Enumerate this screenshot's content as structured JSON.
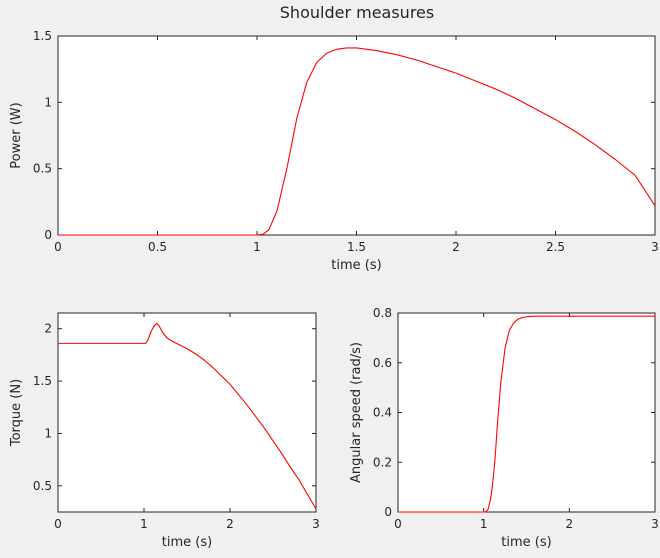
{
  "figure": {
    "title": "Shoulder measures"
  },
  "chart_data": [
    {
      "type": "line",
      "title": "",
      "xlabel": "time (s)",
      "ylabel": "Power (W)",
      "xlim": [
        0,
        3
      ],
      "ylim": [
        0,
        1.5
      ],
      "xticks": [
        0,
        0.5,
        1,
        1.5,
        2,
        2.5,
        3
      ],
      "xtick_labels": [
        "0",
        "0.5",
        "1",
        "1.5",
        "2",
        "2.5",
        "3"
      ],
      "yticks": [
        0,
        0.5,
        1,
        1.5
      ],
      "ytick_labels": [
        "0",
        "0.5",
        "1",
        "1.5"
      ],
      "grid": false,
      "legend": "none",
      "series": [
        {
          "color": "#ff0000",
          "x": [
            0,
            1.0,
            1.03,
            1.06,
            1.1,
            1.15,
            1.2,
            1.25,
            1.3,
            1.35,
            1.4,
            1.45,
            1.5,
            1.6,
            1.7,
            1.8,
            1.9,
            2.0,
            2.1,
            2.2,
            2.3,
            2.4,
            2.5,
            2.6,
            2.7,
            2.8,
            2.9,
            3.0
          ],
          "y": [
            0,
            0,
            0.005,
            0.04,
            0.18,
            0.5,
            0.88,
            1.15,
            1.3,
            1.37,
            1.4,
            1.41,
            1.41,
            1.39,
            1.36,
            1.32,
            1.27,
            1.22,
            1.16,
            1.1,
            1.03,
            0.95,
            0.87,
            0.78,
            0.68,
            0.57,
            0.45,
            0.22
          ]
        }
      ]
    },
    {
      "type": "line",
      "title": "",
      "xlabel": "time (s)",
      "ylabel": "Torque (N)",
      "xlim": [
        0,
        3
      ],
      "ylim": [
        0.25,
        2.15
      ],
      "xticks": [
        0,
        1,
        2,
        3
      ],
      "xtick_labels": [
        "0",
        "1",
        "2",
        "3"
      ],
      "yticks": [
        0.5,
        1,
        1.5,
        2
      ],
      "ytick_labels": [
        "0.5",
        "1",
        "1.5",
        "2"
      ],
      "grid": false,
      "legend": "none",
      "series": [
        {
          "color": "#ff0000",
          "x": [
            0,
            1.02,
            1.05,
            1.08,
            1.12,
            1.15,
            1.18,
            1.22,
            1.27,
            1.33,
            1.4,
            1.5,
            1.6,
            1.7,
            1.8,
            1.9,
            2.0,
            2.1,
            2.2,
            2.3,
            2.4,
            2.5,
            2.6,
            2.7,
            2.8,
            2.9,
            3.0
          ],
          "y": [
            1.86,
            1.86,
            1.9,
            1.97,
            2.03,
            2.05,
            2.02,
            1.96,
            1.91,
            1.88,
            1.85,
            1.81,
            1.76,
            1.7,
            1.63,
            1.55,
            1.47,
            1.37,
            1.27,
            1.16,
            1.05,
            0.93,
            0.81,
            0.68,
            0.56,
            0.42,
            0.28
          ]
        }
      ]
    },
    {
      "type": "line",
      "title": "",
      "xlabel": "time (s)",
      "ylabel": "Angular speed (rad/s)",
      "xlim": [
        0,
        3
      ],
      "ylim": [
        0,
        0.8
      ],
      "xticks": [
        0,
        1,
        2,
        3
      ],
      "xtick_labels": [
        "0",
        "1",
        "2",
        "3"
      ],
      "yticks": [
        0,
        0.2,
        0.4,
        0.6,
        0.8
      ],
      "ytick_labels": [
        "0",
        "0.2",
        "0.4",
        "0.6",
        "0.8"
      ],
      "grid": false,
      "legend": "none",
      "series": [
        {
          "color": "#ff0000",
          "x": [
            0,
            1.02,
            1.05,
            1.08,
            1.1,
            1.13,
            1.16,
            1.2,
            1.25,
            1.3,
            1.35,
            1.4,
            1.45,
            1.5,
            1.6,
            1.8,
            2.0,
            3.0
          ],
          "y": [
            0,
            0,
            0.01,
            0.05,
            0.1,
            0.2,
            0.35,
            0.52,
            0.66,
            0.73,
            0.76,
            0.775,
            0.782,
            0.785,
            0.787,
            0.787,
            0.787,
            0.787
          ]
        }
      ]
    }
  ]
}
